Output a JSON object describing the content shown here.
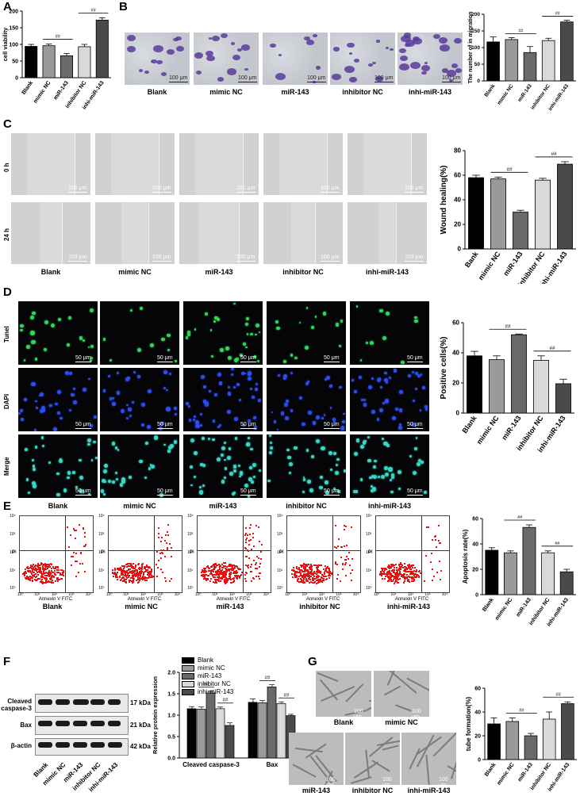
{
  "panels": {
    "A": "A",
    "B": "B",
    "C": "C",
    "D": "D",
    "E": "E",
    "F": "F",
    "G": "G"
  },
  "groups": [
    "Blank",
    "mimic NC",
    "miR-143",
    "inhibitor NC",
    "inhi-miR-143"
  ],
  "groups_C": [
    "Blank",
    "mimic NC",
    "miR-143",
    "inhibitor NC",
    "inhi-miR-143"
  ],
  "groups_C_chart": [
    "Bank",
    "mimic NC",
    "miR-143",
    "inhibitor NC",
    "inhi-miR-143"
  ],
  "scale": {
    "b": "100 μm",
    "c": "100 μm",
    "d": "50 μm",
    "g": "100 μm"
  },
  "rows_C": [
    "0 h",
    "24 h"
  ],
  "rows_D": [
    "Tunel",
    "DAPI",
    "Merge"
  ],
  "sig": "##",
  "flow": {
    "xlabel": "Annexin V FITC",
    "ylabel": "PI",
    "yticks": [
      "10⁴",
      "10³",
      "10²",
      "10¹",
      "10⁰"
    ],
    "xticks": [
      "10⁰",
      "10¹",
      "10²",
      "10³",
      "10⁴"
    ]
  },
  "blot": {
    "rows": [
      {
        "name": "Cleaved caspase-3",
        "kda": "17 kDa"
      },
      {
        "name": "Bax",
        "kda": "21 kDa"
      },
      {
        "name": "β-actin",
        "kda": "42 kDa"
      }
    ],
    "cleaved_label": "Cleaved",
    "caspase_label": "caspase-3"
  },
  "tube_labels": [
    "Blank",
    "mimic NC",
    "miR-143",
    "inhibitor NC",
    "inhi-miR-143"
  ],
  "colors": {
    "c1": "#000000",
    "c2": "#9a9a9a",
    "c3": "#6a6a6a",
    "c4": "#d9d9d9",
    "c5": "#4a4a4a"
  },
  "chart_data": [
    {
      "id": "A",
      "type": "bar",
      "categories": [
        "Blank",
        "mimic NC",
        "miR-143",
        "inhibitor NC",
        "inhi-miR-143"
      ],
      "values": [
        94,
        96,
        66,
        93,
        173
      ],
      "errors": [
        6,
        5,
        7,
        7,
        7
      ],
      "ylabel": "cell viability",
      "ylim": [
        0,
        200
      ],
      "yticks": [
        0,
        50,
        100,
        150,
        200
      ],
      "sig": [
        [
          1,
          2,
          "##"
        ],
        [
          3,
          4,
          "##"
        ]
      ]
    },
    {
      "id": "B",
      "type": "bar",
      "categories": [
        "Blank",
        "mimic NC",
        "miR-143",
        "inhibitor NC",
        "inhi-miR-143"
      ],
      "values": [
        117,
        124,
        85,
        121,
        177
      ],
      "errors": [
        15,
        6,
        18,
        7,
        5
      ],
      "ylabel": "The number of in migration",
      "ylim": [
        0,
        200
      ],
      "yticks": [
        0,
        50,
        100,
        150,
        200
      ],
      "sig": [
        [
          1,
          2,
          "##"
        ],
        [
          3,
          4,
          "##"
        ]
      ]
    },
    {
      "id": "C",
      "type": "bar",
      "categories": [
        "Bank",
        "mimic NC",
        "miR-143",
        "inhibitor NC",
        "inhi-miR-143"
      ],
      "values": [
        58,
        57,
        30,
        56,
        69
      ],
      "errors": [
        2,
        1.5,
        1.5,
        1.5,
        2
      ],
      "ylabel": "Wound healing(%)",
      "ylim": [
        0,
        80
      ],
      "yticks": [
        0,
        20,
        40,
        60,
        80
      ],
      "sig": [
        [
          1,
          2,
          "##"
        ],
        [
          3,
          4,
          "##"
        ]
      ]
    },
    {
      "id": "D",
      "type": "bar",
      "categories": [
        "Blank",
        "mimic NC",
        "miR-143",
        "inhibitor NC",
        "inhi-miR-143"
      ],
      "values": [
        38,
        35.5,
        52,
        35,
        19.5
      ],
      "errors": [
        3,
        2.5,
        0.5,
        3,
        3
      ],
      "ylabel": "Positive cells(%)",
      "ylim": [
        0,
        60
      ],
      "yticks": [
        0,
        20,
        40,
        60
      ],
      "sig": [
        [
          1,
          2,
          "##"
        ],
        [
          3,
          4,
          "##"
        ]
      ]
    },
    {
      "id": "E",
      "type": "bar",
      "categories": [
        "Blank",
        "mimic NC",
        "miR-143",
        "inhibitor NC",
        "inhi-miR-143"
      ],
      "values": [
        35,
        33,
        53,
        33,
        18
      ],
      "errors": [
        2,
        1.5,
        2,
        1.5,
        2
      ],
      "ylabel": "Apoptosis rate(%)",
      "ylim": [
        0,
        60
      ],
      "yticks": [
        0,
        20,
        40,
        60
      ],
      "sig": [
        [
          1,
          2,
          "##"
        ],
        [
          3,
          4,
          "##"
        ]
      ]
    },
    {
      "id": "F",
      "type": "bar",
      "groups": [
        "Cleaved caspase-3",
        "Bax"
      ],
      "series": [
        {
          "name": "Blank",
          "values": [
            1.15,
            1.3
          ],
          "errors": [
            0.05,
            0.08
          ]
        },
        {
          "name": "mimic NC",
          "values": [
            1.14,
            1.29
          ],
          "errors": [
            0.05,
            0.05
          ]
        },
        {
          "name": "miR-143",
          "values": [
            1.52,
            1.66
          ],
          "errors": [
            0.04,
            0.05
          ]
        },
        {
          "name": "inhibitor NC",
          "values": [
            1.15,
            1.27
          ],
          "errors": [
            0.04,
            0.04
          ]
        },
        {
          "name": "inhi-miR-143",
          "values": [
            0.76,
            0.99
          ],
          "errors": [
            0.06,
            0.03
          ]
        }
      ],
      "ylabel": "Relative protein expression",
      "ylim": [
        0,
        2.0
      ],
      "yticks": [
        0.0,
        0.5,
        1.0,
        1.5,
        2.0
      ],
      "sig": "##"
    },
    {
      "id": "G",
      "type": "bar",
      "categories": [
        "Blank",
        "mimic NC",
        "miR-143",
        "inhibitor NC",
        "inhi-miR-143"
      ],
      "values": [
        30,
        32,
        20,
        34,
        47
      ],
      "errors": [
        5,
        3,
        2,
        6,
        1.5
      ],
      "ylabel": "tube formation(%)",
      "ylim": [
        0,
        60
      ],
      "yticks": [
        0,
        20,
        40,
        60
      ],
      "sig": [
        [
          1,
          2,
          "##"
        ],
        [
          3,
          4,
          "##"
        ]
      ]
    }
  ]
}
